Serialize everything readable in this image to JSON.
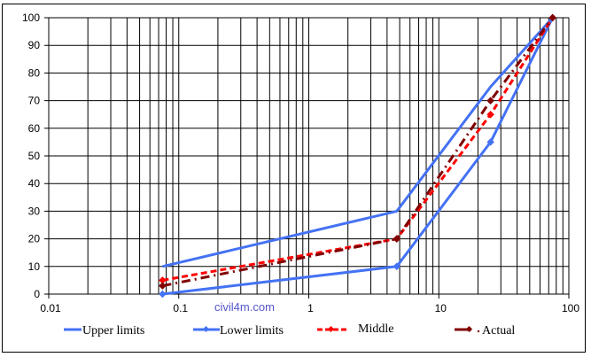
{
  "chart_data": {
    "type": "line",
    "title": "",
    "xlabel": "",
    "ylabel": "",
    "x_scale": "log",
    "xlim": [
      0.01,
      100
    ],
    "ylim": [
      0,
      100
    ],
    "grid": true,
    "legend_position": "bottom",
    "x_tick_labels": [
      "0.01",
      "0.1",
      "1",
      "10",
      "100"
    ],
    "y_tick_labels": [
      "0",
      "10",
      "20",
      "30",
      "40",
      "50",
      "60",
      "70",
      "80",
      "90",
      "100"
    ],
    "series": [
      {
        "name": "Upper limits",
        "color": "#4472f4",
        "style": "solid",
        "x": [
          0.075,
          4.75,
          25,
          75
        ],
        "values": [
          10,
          30,
          75,
          100
        ]
      },
      {
        "name": "Lower limits",
        "color": "#4472f4",
        "style": "solid",
        "x": [
          0.075,
          4.75,
          25,
          75
        ],
        "values": [
          0,
          10,
          55,
          100
        ]
      },
      {
        "name": "Middle",
        "color": "#ff0000",
        "style": "dashed",
        "x": [
          0.075,
          4.75,
          25,
          75
        ],
        "values": [
          5,
          20,
          65,
          100
        ]
      },
      {
        "name": "Actual",
        "color": "#800000",
        "style": "dash-dot",
        "x": [
          0.075,
          4.75,
          25,
          75
        ],
        "values": [
          3,
          20,
          70,
          100
        ]
      }
    ],
    "annotations": [
      "civil4m.com"
    ]
  },
  "legend": {
    "items": [
      {
        "label": "Upper limits"
      },
      {
        "label": "Lower limits"
      },
      {
        "label": "Middle"
      },
      {
        "label": "Actual"
      }
    ]
  },
  "watermark": "civil4m.com"
}
